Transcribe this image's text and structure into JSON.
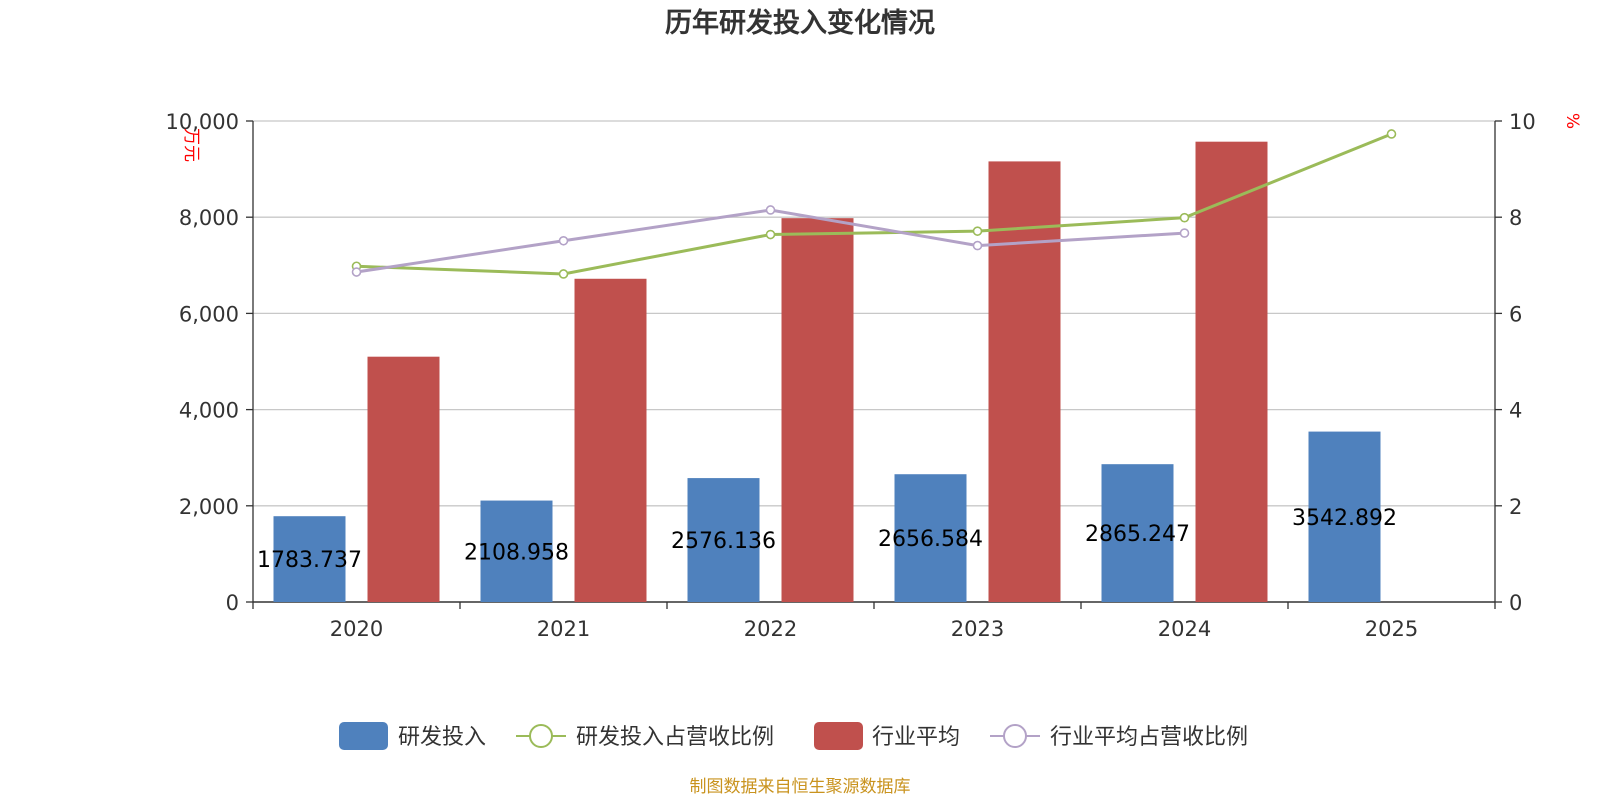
{
  "chart_data": {
    "type": "bar",
    "title": "历年研发投入变化情况",
    "categories": [
      "2020",
      "2021",
      "2022",
      "2023",
      "2024",
      "2025"
    ],
    "y_left": {
      "unit": "万元",
      "min": 0,
      "max": 10000,
      "ticks": [
        "0",
        "2,000",
        "4,000",
        "6,000",
        "8,000",
        "10,000"
      ]
    },
    "y_right": {
      "unit": "%",
      "min": 0,
      "max": 10,
      "ticks": [
        "0",
        "2",
        "4",
        "6",
        "8",
        "10"
      ]
    },
    "series": [
      {
        "name": "研发投入",
        "kind": "bar",
        "axis": "left",
        "color": "#4f81bd",
        "values": [
          1783.737,
          2108.958,
          2576.136,
          2656.584,
          2865.247,
          3542.892
        ],
        "labels": [
          "1783.737",
          "2108.958",
          "2576.136",
          "2656.584",
          "2865.247",
          "3542.892"
        ]
      },
      {
        "name": "研发投入占营收比例",
        "kind": "line",
        "axis": "right",
        "color": "#9bbb59",
        "values": [
          6.98,
          6.82,
          7.64,
          7.71,
          7.99,
          9.73
        ]
      },
      {
        "name": "行业平均",
        "kind": "bar",
        "axis": "left",
        "color": "#c0504d",
        "values": [
          5100,
          6720,
          7980,
          9160,
          9570,
          null
        ]
      },
      {
        "name": "行业平均占营收比例",
        "kind": "line",
        "axis": "right",
        "color": "#b3a2c7",
        "values": [
          6.86,
          7.51,
          8.15,
          7.41,
          7.67,
          null
        ]
      }
    ],
    "grid": true,
    "legend_position": "bottom"
  },
  "footer": {
    "source": "制图数据来自恒生聚源数据库"
  }
}
